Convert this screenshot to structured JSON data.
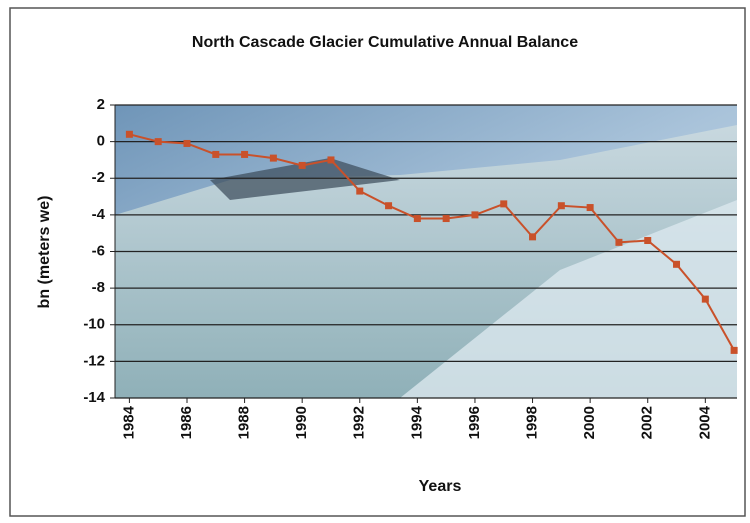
{
  "chart_data": {
    "type": "line",
    "title": "North Cascade Glacier Cumulative Annual Balance",
    "x_label": "Years",
    "y_label": "bn (meters we)",
    "x": [
      1984,
      1985,
      1986,
      1987,
      1988,
      1989,
      1990,
      1991,
      1992,
      1993,
      1994,
      1995,
      1996,
      1997,
      1998,
      1999,
      2000,
      2001,
      2002,
      2003,
      2004,
      2005
    ],
    "series": [
      {
        "color": "#c9512a",
        "values": [
          0.4,
          0.0,
          -0.1,
          -0.7,
          -0.7,
          -0.9,
          -1.3,
          -1.0,
          -2.7,
          -3.5,
          -4.2,
          -4.2,
          -4.0,
          -3.4,
          -5.2,
          -3.5,
          -3.6,
          -5.5,
          -5.4,
          -6.7,
          -8.6,
          -11.4
        ]
      }
    ],
    "xlim": [
      1983.5,
      2005.1
    ],
    "xticks": [
      1984,
      1986,
      1988,
      1990,
      1992,
      1994,
      1996,
      1998,
      2000,
      2002,
      2004
    ],
    "ylim": [
      -14,
      2
    ],
    "yticks": [
      -14,
      -12,
      -10,
      -8,
      -6,
      -4,
      -2,
      0,
      2
    ],
    "grid": true
  }
}
